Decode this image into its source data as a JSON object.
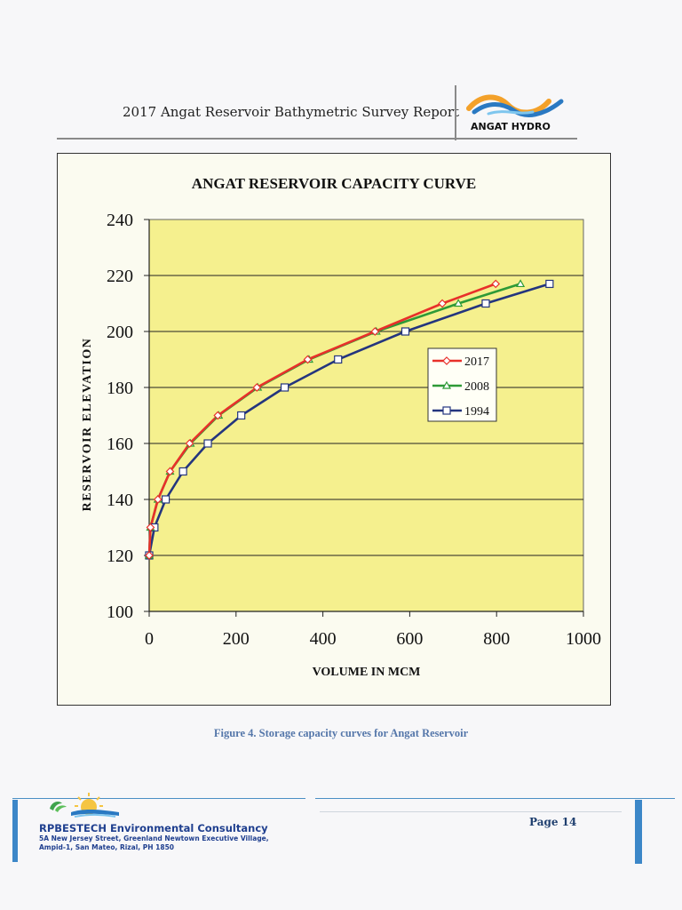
{
  "header": {
    "report_title": "2017 Angat Reservoir Bathymetric Survey Report",
    "logo_text": "ANGAT HYDRO"
  },
  "colors": {
    "plot_bg": "#f5f08e",
    "series_2017": "#e8302a",
    "series_2008": "#2e9a37",
    "series_1994": "#24357e",
    "caption": "#5577aa",
    "footer_accent": "#3c87c8"
  },
  "chart_data": {
    "type": "line",
    "title": "ANGAT RESERVOIR CAPACITY CURVE",
    "xlabel": "VOLUME IN MCM",
    "ylabel": "RESERVOIR ELEVATION",
    "xlim": [
      0,
      1000
    ],
    "ylim": [
      100,
      240
    ],
    "xticks": [
      0,
      200,
      400,
      600,
      800,
      1000
    ],
    "yticks": [
      100,
      120,
      140,
      160,
      180,
      200,
      220,
      240
    ],
    "grid": "horizontal",
    "legend_position": "right-center",
    "series": [
      {
        "name": "2017",
        "marker": "diamond",
        "color": "#e8302a",
        "points": [
          [
            0,
            120
          ],
          [
            3,
            130
          ],
          [
            20,
            140
          ],
          [
            48,
            150
          ],
          [
            93,
            160
          ],
          [
            158,
            170
          ],
          [
            248,
            180
          ],
          [
            365,
            190
          ],
          [
            520,
            200
          ],
          [
            675,
            210
          ],
          [
            798,
            217
          ]
        ]
      },
      {
        "name": "2008",
        "marker": "triangle",
        "color": "#2e9a37",
        "points": [
          [
            0,
            120
          ],
          [
            3,
            130
          ],
          [
            20,
            140
          ],
          [
            48,
            150
          ],
          [
            95,
            160
          ],
          [
            160,
            170
          ],
          [
            250,
            180
          ],
          [
            368,
            190
          ],
          [
            523,
            200
          ],
          [
            712,
            210
          ],
          [
            855,
            217
          ]
        ]
      },
      {
        "name": "1994",
        "marker": "square",
        "color": "#24357e",
        "points": [
          [
            0,
            120
          ],
          [
            12,
            130
          ],
          [
            38,
            140
          ],
          [
            78,
            150
          ],
          [
            135,
            160
          ],
          [
            212,
            170
          ],
          [
            312,
            180
          ],
          [
            435,
            190
          ],
          [
            590,
            200
          ],
          [
            775,
            210
          ],
          [
            922,
            217
          ]
        ]
      }
    ]
  },
  "caption": "Figure 4. Storage capacity curves for Angat Reservoir",
  "footer": {
    "company_name": "RPBESTECH Environmental Consultancy",
    "address_line1": "5A New Jersey Street, Greenland Newtown Executive Village,",
    "address_line2": "Ampid-1, San Mateo, Rizal, PH 1850",
    "page_label": "Page 14"
  }
}
